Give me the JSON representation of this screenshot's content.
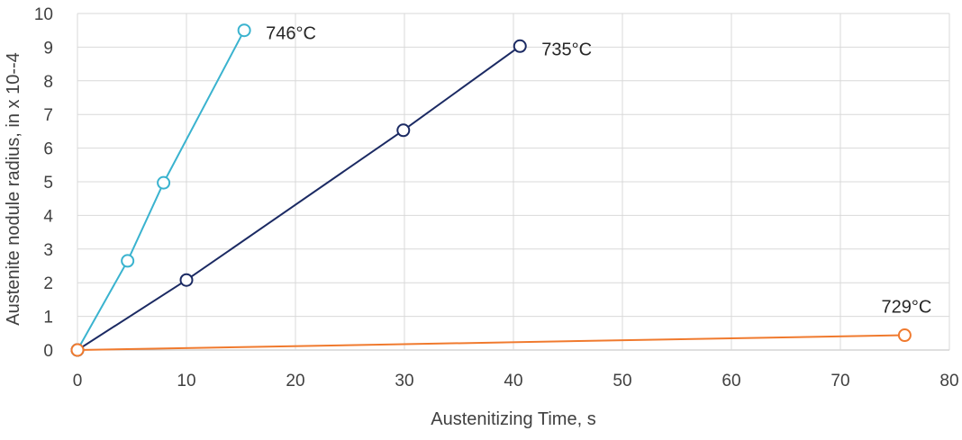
{
  "chart_data": {
    "type": "line",
    "xlabel": "Austenitizing Time, s",
    "ylabel": "Austenite nodule radius, in x 10--4",
    "xlim": [
      0,
      80
    ],
    "ylim": [
      0,
      10
    ],
    "x_ticks": [
      0,
      10,
      20,
      30,
      40,
      50,
      60,
      70,
      80
    ],
    "y_ticks": [
      0,
      1,
      2,
      3,
      4,
      5,
      6,
      7,
      8,
      9,
      10
    ],
    "grid": "on",
    "legend": "none",
    "series": [
      {
        "name": "746°C",
        "color": "#3ab3cf",
        "marker": "open-circle",
        "x": [
          0,
          4.6,
          7.9,
          15.3
        ],
        "y": [
          0,
          2.65,
          4.97,
          9.5
        ]
      },
      {
        "name": "735°C",
        "color": "#1b2a63",
        "marker": "open-circle",
        "x": [
          0,
          10,
          29.9,
          40.6
        ],
        "y": [
          0,
          2.08,
          6.53,
          9.03
        ]
      },
      {
        "name": "729°C",
        "color": "#f07a2e",
        "marker": "open-circle",
        "x": [
          0,
          75.9
        ],
        "y": [
          0,
          0.44
        ]
      }
    ]
  }
}
